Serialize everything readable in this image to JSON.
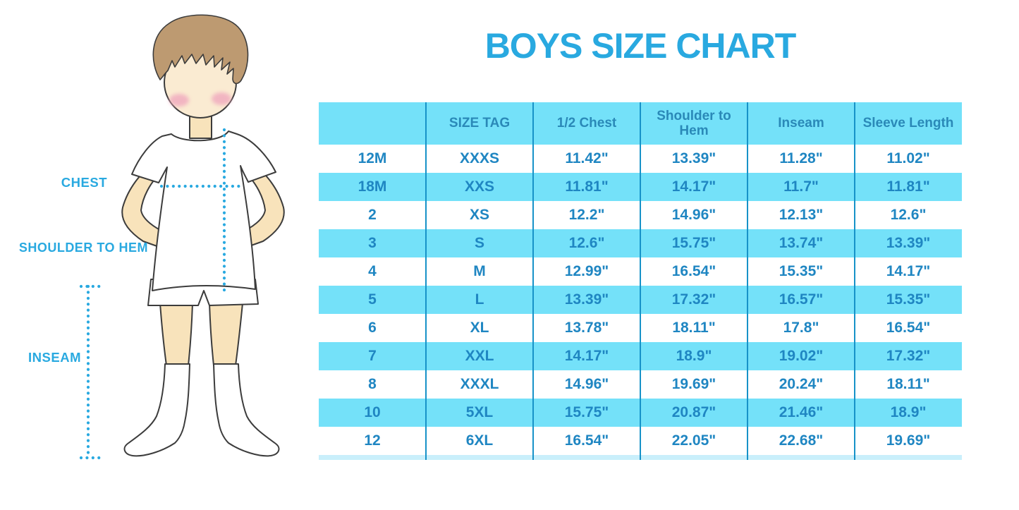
{
  "title": "BOYS SIZE CHART",
  "figure": {
    "labels": {
      "chest": "CHEST",
      "shoulder_to_hem": "SHOULDER TO HEM",
      "inseam": "INSEAM"
    }
  },
  "chart_data": {
    "type": "table",
    "title": "BOYS SIZE CHART",
    "columns": [
      "",
      "SIZE TAG",
      "1/2 Chest",
      "Shoulder to Hem",
      "Inseam",
      "Sleeve Length"
    ],
    "rows": [
      [
        "12M",
        "XXXS",
        "11.42\"",
        "13.39\"",
        "11.28\"",
        "11.02\""
      ],
      [
        "18M",
        "XXS",
        "11.81\"",
        "14.17\"",
        "11.7\"",
        "11.81\""
      ],
      [
        "2",
        "XS",
        "12.2\"",
        "14.96\"",
        "12.13\"",
        "12.6\""
      ],
      [
        "3",
        "S",
        "12.6\"",
        "15.75\"",
        "13.74\"",
        "13.39\""
      ],
      [
        "4",
        "M",
        "12.99\"",
        "16.54\"",
        "15.35\"",
        "14.17\""
      ],
      [
        "5",
        "L",
        "13.39\"",
        "17.32\"",
        "16.57\"",
        "15.35\""
      ],
      [
        "6",
        "XL",
        "13.78\"",
        "18.11\"",
        "17.8\"",
        "16.54\""
      ],
      [
        "7",
        "XXL",
        "14.17\"",
        "18.9\"",
        "19.02\"",
        "17.32\""
      ],
      [
        "8",
        "XXXL",
        "14.96\"",
        "19.69\"",
        "20.24\"",
        "18.11\""
      ],
      [
        "10",
        "5XL",
        "15.75\"",
        "20.87\"",
        "21.46\"",
        "18.9\""
      ],
      [
        "12",
        "6XL",
        "16.54\"",
        "22.05\"",
        "22.68\"",
        "19.69\""
      ]
    ]
  },
  "colors": {
    "accent_blue": "#29A9E0",
    "table_fill_cyan": "#74E1F9",
    "table_text": "#1F86C2",
    "header_text": "#2A89B8",
    "divider_blue": "#1792C8",
    "bottom_band": "#C9EFFB",
    "skin": "#F8E3BB",
    "face_skin": "#FAEBD2",
    "hair_brown": "#BD9A71",
    "cheek_pink": "#F0A8BE",
    "outline": "#3C3C3C"
  }
}
